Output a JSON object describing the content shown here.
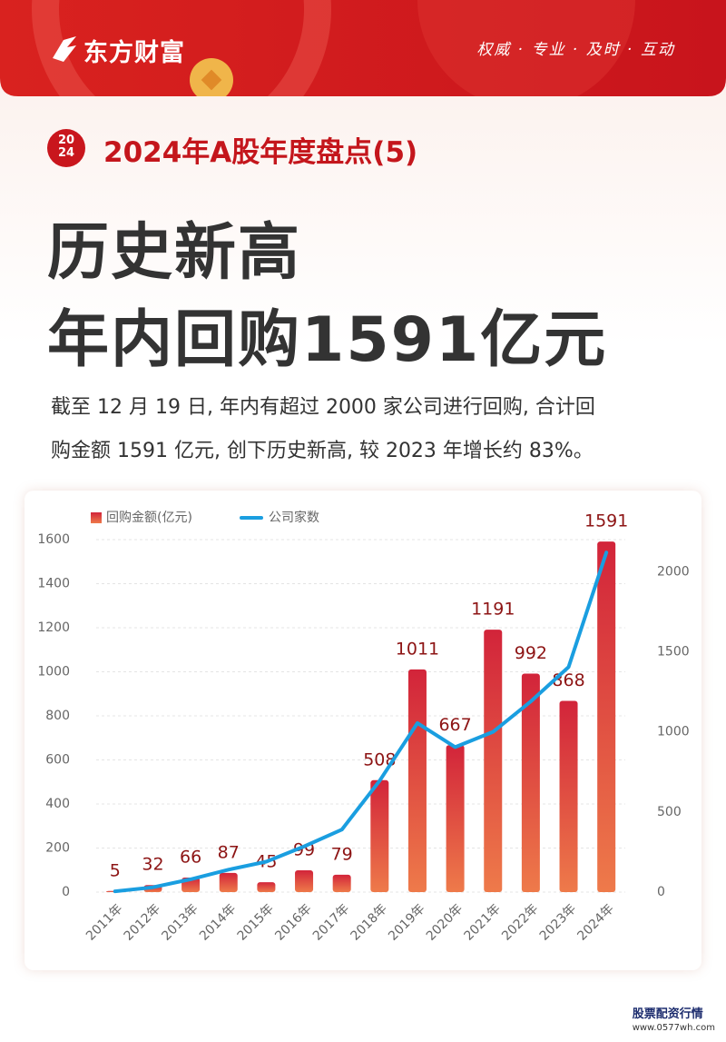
{
  "header": {
    "brand": "东方财富",
    "slogan": "权威 · 专业 · 及时 · 互动"
  },
  "badge": [
    "20",
    "24"
  ],
  "section_title": "2024年A股年度盘点(5)",
  "headline": [
    "历史新高",
    "年内回购1591亿元"
  ],
  "paragraph": [
    "截至 12 月 19 日, 年内有超过 2000 家公司进行回购, 合计回",
    "购金额 1591 亿元, 创下历史新高, 较 2023 年增长约 83%。"
  ],
  "chart_data": {
    "type": "combo",
    "categories": [
      "2011年",
      "2012年",
      "2013年",
      "2014年",
      "2015年",
      "2016年",
      "2017年",
      "2018年",
      "2019年",
      "2020年",
      "2021年",
      "2022年",
      "2023年",
      "2024年"
    ],
    "series": [
      {
        "name": "回购金额(亿元)",
        "type": "bar",
        "color": "#d7343a",
        "values": [
          5,
          32,
          66,
          87,
          45,
          99,
          79,
          508,
          1011,
          667,
          1191,
          992,
          868,
          1591
        ]
      },
      {
        "name": "公司家数",
        "type": "line",
        "axis": "y2",
        "color": "#1a9ee0",
        "values": [
          5,
          30,
          80,
          140,
          190,
          285,
          390,
          695,
          1055,
          905,
          1000,
          1190,
          1405,
          2120
        ]
      }
    ],
    "ylim": [
      0,
      1600
    ],
    "yticks": [
      0,
      200,
      400,
      600,
      800,
      1000,
      1200,
      1400,
      1600
    ],
    "y2lim": [
      0,
      2200
    ],
    "y2ticks": [
      0,
      500,
      1000,
      1500,
      2000
    ],
    "grid": true
  },
  "watermark": {
    "name": "股票配资行情",
    "url": "www.0577wh.com"
  }
}
